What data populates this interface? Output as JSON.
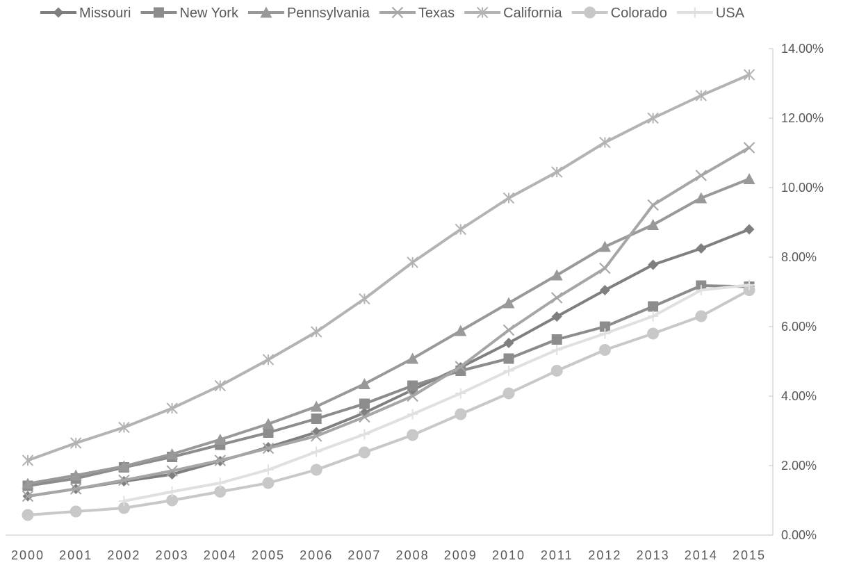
{
  "chart_data": {
    "type": "line",
    "title": "",
    "xlabel": "",
    "ylabel": "",
    "legend_position": "top",
    "grid": false,
    "y_axis_side": "right",
    "ylim": [
      0,
      0.14
    ],
    "y_ticks": [
      0,
      0.02,
      0.04,
      0.06,
      0.08,
      0.1,
      0.12,
      0.14
    ],
    "y_tick_labels": [
      "0.00%",
      "2.00%",
      "4.00%",
      "6.00%",
      "8.00%",
      "10.00%",
      "12.00%",
      "14.00%"
    ],
    "categories": [
      "2000",
      "2001",
      "2002",
      "2003",
      "2004",
      "2005",
      "2006",
      "2007",
      "2008",
      "2009",
      "2010",
      "2011",
      "2012",
      "2013",
      "2014",
      "2015"
    ],
    "series": [
      {
        "name": "Missouri",
        "color": "#7f7f7f",
        "marker": "diamond",
        "values": [
          0.0112,
          0.0133,
          0.0155,
          0.0175,
          0.0213,
          0.0253,
          0.0296,
          0.0352,
          0.0418,
          0.0483,
          0.0553,
          0.0629,
          0.0705,
          0.0778,
          0.0825,
          0.088
        ]
      },
      {
        "name": "New York",
        "color": "#8c8c8c",
        "marker": "square",
        "values": [
          0.0142,
          0.0163,
          0.0195,
          0.0225,
          0.026,
          0.0295,
          0.0335,
          0.0378,
          0.043,
          0.0473,
          0.0508,
          0.0563,
          0.06,
          0.0658,
          0.0718,
          0.0715
        ]
      },
      {
        "name": "Pennsylvania",
        "color": "#999999",
        "marker": "triangle",
        "values": [
          0.0148,
          0.0172,
          0.0198,
          0.0233,
          0.0275,
          0.032,
          0.037,
          0.0435,
          0.0508,
          0.0588,
          0.0668,
          0.0748,
          0.083,
          0.0893,
          0.097,
          0.1025
        ]
      },
      {
        "name": "Texas",
        "color": "#a6a6a6",
        "marker": "x",
        "values": [
          0.0112,
          0.0133,
          0.0158,
          0.0185,
          0.0215,
          0.025,
          0.0285,
          0.034,
          0.04,
          0.0485,
          0.059,
          0.0683,
          0.0768,
          0.095,
          0.1035,
          0.1115
        ]
      },
      {
        "name": "California",
        "color": "#b3b3b3",
        "marker": "asterisk",
        "values": [
          0.0215,
          0.0265,
          0.031,
          0.0365,
          0.043,
          0.0505,
          0.0585,
          0.068,
          0.0785,
          0.088,
          0.097,
          0.1045,
          0.113,
          0.12,
          0.1265,
          0.1325
        ]
      },
      {
        "name": "Colorado",
        "color": "#c8c8c8",
        "marker": "circle",
        "values": [
          0.0058,
          0.0068,
          0.0078,
          0.01,
          0.0125,
          0.015,
          0.0188,
          0.0238,
          0.0288,
          0.0348,
          0.0408,
          0.0473,
          0.0533,
          0.058,
          0.063,
          0.0705
        ]
      },
      {
        "name": "USA",
        "color": "#e0e0e0",
        "marker": "plus",
        "values": [
          null,
          null,
          0.0098,
          0.0125,
          0.015,
          0.0188,
          0.024,
          0.029,
          0.0348,
          0.0408,
          0.0473,
          0.0533,
          0.058,
          0.063,
          0.0705,
          0.072
        ]
      }
    ]
  }
}
